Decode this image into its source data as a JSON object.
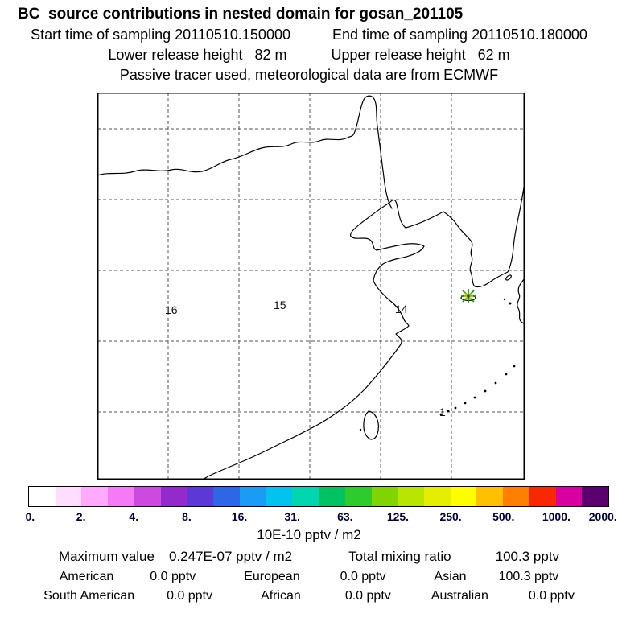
{
  "header": {
    "title": "BC  source contributions in nested domain for gosan_201105",
    "start_time": "Start time of sampling 20110510.150000",
    "end_time": "End time of sampling 20110510.180000",
    "lower_release": "Lower release height   82 m",
    "upper_release": "Upper release height   62 m",
    "tracer_note": "Passive tracer used, meteorological data are from ECMWF"
  },
  "map": {
    "cell_labels": [
      {
        "text": "16"
      },
      {
        "text": "15"
      },
      {
        "text": "14"
      },
      {
        "text": "1"
      }
    ],
    "marker": {
      "colors": [
        "#00a000",
        "#d8cc00",
        "#303030"
      ]
    }
  },
  "colorbar": {
    "colors": [
      "#ffffff",
      "#ffddff",
      "#ffaaff",
      "#f57af5",
      "#cc4add",
      "#9429cc",
      "#5c38d6",
      "#2e66e8",
      "#1a9cf5",
      "#00c4ee",
      "#00d6b0",
      "#00c260",
      "#2eca2e",
      "#80d500",
      "#b8e600",
      "#e6ee00",
      "#ffff00",
      "#ffc000",
      "#ff8000",
      "#f82800",
      "#d800a0",
      "#5c0070"
    ],
    "ticks": [
      "0.",
      "2.",
      "4.",
      "8.",
      "16.",
      "31.",
      "63.",
      "125.",
      "250.",
      "500.",
      "1000.",
      "2000."
    ],
    "unit": "10E-10 pptv / m2"
  },
  "stats": {
    "max_label": "Maximum value",
    "max_value": "0.247E-07 pptv / m2",
    "total_label": "Total mixing ratio",
    "total_value": "100.3 pptv",
    "regions": [
      {
        "label": "American",
        "value": "0.0 pptv"
      },
      {
        "label": "European",
        "value": "0.0 pptv"
      },
      {
        "label": "Asian",
        "value": "100.3 pptv"
      },
      {
        "label": "South American",
        "value": "0.0 pptv"
      },
      {
        "label": "African",
        "value": "0.0 pptv"
      },
      {
        "label": "Australian",
        "value": "0.0 pptv"
      }
    ]
  },
  "chart_data": {
    "type": "heatmap",
    "subtype": "geographic source-contribution map (FLEXPART-style, East Asia nested domain)",
    "title": "BC  source contributions in nested domain for gosan_201105",
    "colorbar_ticks": [
      0,
      2,
      4,
      8,
      16,
      31,
      63,
      125,
      250,
      500,
      1000,
      2000
    ],
    "colorbar_unit": "10E-10 pptv / m2",
    "scale": "logarithmic (doubling)",
    "max_value": "0.247E-07 pptv / m2",
    "total_mixing_ratio_pptv": 100.3,
    "contributions_pptv": {
      "American": 0.0,
      "European": 0.0,
      "Asian": 100.3,
      "South American": 0.0,
      "African": 0.0,
      "Australian": 0.0
    },
    "map_cell_numbers": [
      16,
      15,
      14,
      1
    ],
    "grid": "dashed lat/lon graticule",
    "legend_position": "horizontal colorbar below map"
  }
}
